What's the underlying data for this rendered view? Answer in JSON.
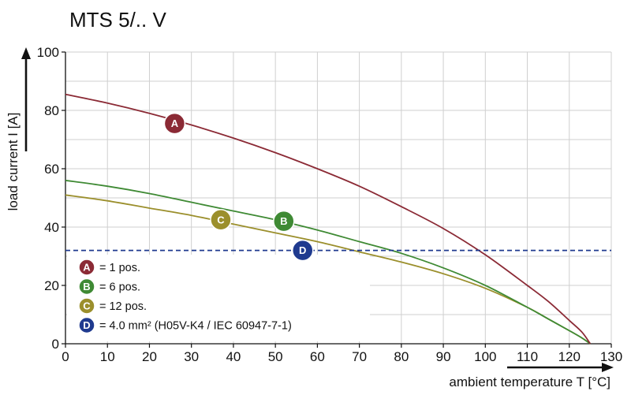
{
  "chart_data": {
    "type": "line",
    "title": "MTS 5/.. V",
    "xlabel": "ambient temperature T [°C]",
    "ylabel": "load current I [A]",
    "xlim": [
      0,
      130
    ],
    "ylim": [
      0,
      100
    ],
    "x_ticks": [
      "0",
      "10",
      "20",
      "30",
      "40",
      "50",
      "60",
      "70",
      "80",
      "90",
      "100",
      "110",
      "120",
      "130"
    ],
    "y_ticks": [
      "0",
      "20",
      "40",
      "60",
      "80",
      "100"
    ],
    "grid": true,
    "series": [
      {
        "id": "A",
        "name": "= 1 pos.",
        "color": "#8b2a35",
        "label_at": [
          26,
          75.5
        ],
        "x": [
          0,
          10,
          20,
          30,
          40,
          50,
          60,
          70,
          80,
          90,
          100,
          110,
          115,
          120,
          123,
          125
        ],
        "y": [
          85.5,
          82.5,
          79,
          75,
          70.5,
          65.5,
          60,
          54,
          47,
          39.5,
          30.5,
          20,
          14.5,
          8,
          4,
          0
        ]
      },
      {
        "id": "B",
        "name": "= 6 pos.",
        "color": "#3f8a34",
        "label_at": [
          52,
          42
        ],
        "x": [
          0,
          10,
          20,
          30,
          40,
          50,
          60,
          70,
          80,
          90,
          100,
          110,
          115,
          120,
          123,
          125
        ],
        "y": [
          56,
          54,
          51.5,
          48.5,
          45.5,
          42.5,
          39,
          35,
          31,
          26,
          20,
          12.5,
          8.5,
          4.5,
          2,
          0
        ]
      },
      {
        "id": "C",
        "name": "= 12 pos.",
        "color": "#9b8f2c",
        "label_at": [
          37,
          42.5
        ],
        "x": [
          0,
          10,
          20,
          30,
          40,
          50,
          60,
          70,
          80,
          90,
          100,
          110,
          115,
          120,
          123,
          125
        ],
        "y": [
          51,
          49,
          46.5,
          44,
          41,
          38,
          35,
          31.5,
          28,
          24,
          19,
          12.5,
          8.5,
          4.5,
          2,
          0
        ]
      },
      {
        "id": "D",
        "name": "= 4.0 mm² (H05V-K4 / IEC 60947-7-1)",
        "color": "#1f3a8f",
        "label_at": [
          56.5,
          32
        ],
        "dashed": true,
        "x": [
          0,
          130
        ],
        "y": [
          32,
          32
        ]
      }
    ],
    "legend_position": "bottom-left"
  }
}
